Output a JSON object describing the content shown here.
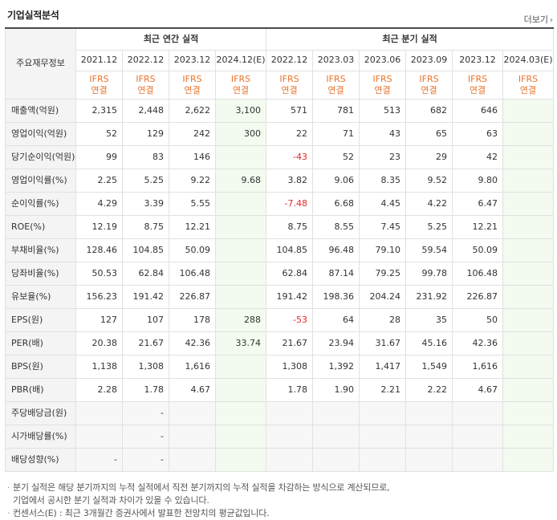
{
  "header": {
    "title": "기업실적분석",
    "more_label": "더보기"
  },
  "table": {
    "corner_label": "주요재무정보",
    "annual_group_label": "최근 연간 실적",
    "quarter_group_label": "최근 분기 실적",
    "annual_periods": [
      "2021.12",
      "2022.12",
      "2023.12",
      "2024.12(E)"
    ],
    "quarter_periods": [
      "2022.12",
      "2023.03",
      "2023.06",
      "2023.09",
      "2023.12",
      "2024.03(E)"
    ],
    "ifrs_line1": "IFRS",
    "ifrs_line2": "연결",
    "rows": [
      {
        "label": "매출액(억원)",
        "annual": [
          "2,315",
          "2,448",
          "2,622",
          "3,100"
        ],
        "quarter": [
          "571",
          "781",
          "513",
          "682",
          "646",
          ""
        ]
      },
      {
        "label": "영업이익(억원)",
        "annual": [
          "52",
          "129",
          "242",
          "300"
        ],
        "quarter": [
          "22",
          "71",
          "43",
          "65",
          "63",
          ""
        ]
      },
      {
        "label": "당기순이익(억원)",
        "annual": [
          "99",
          "83",
          "146",
          ""
        ],
        "quarter": [
          "-43",
          "52",
          "23",
          "29",
          "42",
          ""
        ]
      },
      {
        "label": "영업이익률(%)",
        "annual": [
          "2.25",
          "5.25",
          "9.22",
          "9.68"
        ],
        "quarter": [
          "3.82",
          "9.06",
          "8.35",
          "9.52",
          "9.80",
          ""
        ]
      },
      {
        "label": "순이익률(%)",
        "annual": [
          "4.29",
          "3.39",
          "5.55",
          ""
        ],
        "quarter": [
          "-7.48",
          "6.68",
          "4.45",
          "4.22",
          "6.47",
          ""
        ]
      },
      {
        "label": "ROE(%)",
        "annual": [
          "12.19",
          "8.75",
          "12.21",
          ""
        ],
        "quarter": [
          "8.75",
          "8.55",
          "7.45",
          "5.25",
          "12.21",
          ""
        ]
      },
      {
        "label": "부채비율(%)",
        "annual": [
          "128.46",
          "104.85",
          "50.09",
          ""
        ],
        "quarter": [
          "104.85",
          "96.48",
          "79.10",
          "59.54",
          "50.09",
          ""
        ]
      },
      {
        "label": "당좌비율(%)",
        "annual": [
          "50.53",
          "62.84",
          "106.48",
          ""
        ],
        "quarter": [
          "62.84",
          "87.14",
          "79.25",
          "99.78",
          "106.48",
          ""
        ]
      },
      {
        "label": "유보율(%)",
        "annual": [
          "156.23",
          "191.42",
          "226.87",
          ""
        ],
        "quarter": [
          "191.42",
          "198.36",
          "204.24",
          "231.92",
          "226.87",
          ""
        ]
      },
      {
        "label": "EPS(원)",
        "annual": [
          "127",
          "107",
          "178",
          "288"
        ],
        "quarter": [
          "-53",
          "64",
          "28",
          "35",
          "50",
          ""
        ]
      },
      {
        "label": "PER(배)",
        "annual": [
          "20.38",
          "21.67",
          "42.36",
          "33.74"
        ],
        "quarter": [
          "21.67",
          "23.94",
          "31.67",
          "45.16",
          "42.36",
          ""
        ]
      },
      {
        "label": "BPS(원)",
        "annual": [
          "1,138",
          "1,308",
          "1,616",
          ""
        ],
        "quarter": [
          "1,308",
          "1,392",
          "1,417",
          "1,549",
          "1,616",
          ""
        ]
      },
      {
        "label": "PBR(배)",
        "annual": [
          "2.28",
          "1.78",
          "4.67",
          ""
        ],
        "quarter": [
          "1.78",
          "1.90",
          "2.21",
          "2.22",
          "4.67",
          ""
        ]
      },
      {
        "label": "주당배당금(원)",
        "annual": [
          "",
          "-",
          "",
          ""
        ],
        "quarter": [
          "",
          "",
          "",
          "",
          "",
          ""
        ]
      },
      {
        "label": "시가배당률(%)",
        "annual": [
          "",
          "-",
          "",
          ""
        ],
        "quarter": [
          "",
          "",
          "",
          "",
          "",
          ""
        ]
      },
      {
        "label": "배당성향(%)",
        "annual": [
          "-",
          "-",
          "",
          ""
        ],
        "quarter": [
          "",
          "",
          "",
          "",
          "",
          ""
        ]
      }
    ]
  },
  "notes": [
    "분기 실적은 해당 분기까지의 누적 실적에서 직전 분기까지의 누적 실적을 차감하는 방식으로 계산되므로,",
    "기업에서 공시한 분기 실적과 차이가 있을 수 있습니다.",
    "컨센서스(E) : 최근 3개월간 증권사에서 발표한 전망치의 평균값입니다."
  ],
  "colors": {
    "ifrs": "#e8732a",
    "negative": "#e3262d",
    "estimate_bg": "#f3faef"
  }
}
